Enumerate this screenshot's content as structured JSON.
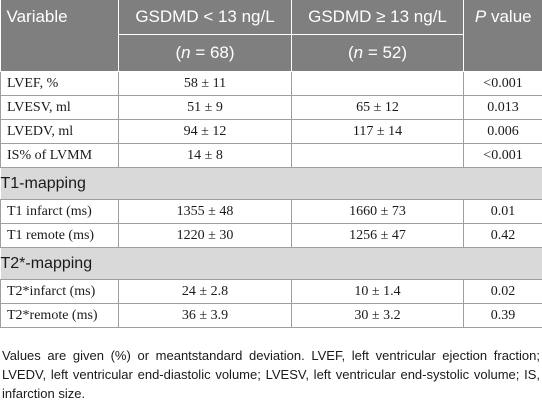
{
  "header": {
    "col0": "Variable",
    "col1": "GSDMD < 13 ng/L",
    "col2": "GSDMD ≥ 13 ng/L",
    "col3_italic": "P",
    "col3_rest": " value",
    "n1_open": "(",
    "n1_italic": "n",
    "n1_rest": " = 68)",
    "n2_open": "(",
    "n2_italic": "n",
    "n2_rest": " = 52)"
  },
  "rows_a": [
    {
      "label": "LVEF, %",
      "g1": "58 ± 11",
      "g2": "",
      "p": "<0.001"
    },
    {
      "label": "LVESV, ml",
      "g1": "51 ± 9",
      "g2": "65 ± 12",
      "p": "0.013"
    },
    {
      "label": "LVEDV, ml",
      "g1": "94 ± 12",
      "g2": "117 ± 14",
      "p": "0.006"
    },
    {
      "label": "IS% of LVMM",
      "g1": "14 ± 8",
      "g2": "",
      "p": "<0.001"
    }
  ],
  "section_t1": "T1-mapping",
  "rows_b": [
    {
      "label": "T1 infarct (ms)",
      "g1": "1355 ± 48",
      "g2": "1660 ± 73",
      "p": "0.01"
    },
    {
      "label": "T1 remote (ms)",
      "g1": "1220 ± 30",
      "g2": "1256 ± 47",
      "p": "0.42"
    }
  ],
  "section_t2": "T2*-mapping",
  "rows_c": [
    {
      "label": "T2*infarct (ms)",
      "g1": "24 ± 2.8",
      "g2": "10 ± 1.4",
      "p": "0.02"
    },
    {
      "label": "T2*remote (ms)",
      "g1": "36 ± 3.9",
      "g2": "30 ± 3.2",
      "p": "0.39"
    }
  ],
  "footnote": "Values are given (%) or meantstandard deviation. LVEF, left ventricular ejection fraction; LVEDV, left ventricular end-diastolic volume; LVESV, left ventricular end-systolic volume; IS, infarction size."
}
